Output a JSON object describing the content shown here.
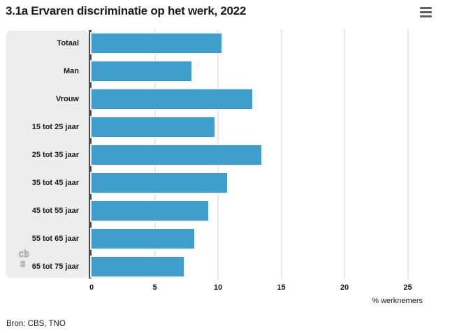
{
  "header": {
    "title": "3.1a Ervaren discriminatie op het werk, 2022"
  },
  "menu": {
    "icon": "hamburger-menu-icon"
  },
  "logo": {
    "line1": "cb",
    "line2": "s"
  },
  "source": "Bron: CBS, TNO",
  "colors": {
    "bar": "#3f9ecb",
    "panel_background": "#ededed",
    "axis_line": "#4d4d4d",
    "gridline": "#e8e8e8",
    "text": "#1a1a1a",
    "logo_gray": "#9b9b9b",
    "menu_icon": "#616161"
  },
  "chart_data": {
    "type": "bar",
    "orientation": "horizontal",
    "title": "3.1a Ervaren discriminatie op het werk, 2022",
    "categories": [
      "Totaal",
      "Man",
      "Vrouw",
      "15 tot 25 jaar",
      "25 tot 35 jaar",
      "35 tot 45 jaar",
      "45 tot 55 jaar",
      "55 tot 65 jaar",
      "65 tot 75 jaar"
    ],
    "values": [
      10.3,
      7.9,
      12.7,
      9.7,
      13.4,
      10.7,
      9.2,
      8.1,
      7.3
    ],
    "xlabel": "% werknemers",
    "xlim": [
      0,
      25
    ],
    "xticks": [
      0,
      5,
      10,
      15,
      20,
      25
    ],
    "grid": true,
    "legend": "none",
    "bar_color": "#3f9ecb",
    "label_panel": true
  }
}
